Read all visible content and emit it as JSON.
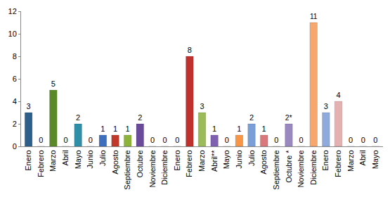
{
  "chart_data": {
    "type": "bar",
    "categories": [
      "Enero",
      "Febrero",
      "Marzo",
      "Abril",
      "Mayo",
      "Junio",
      "Julio",
      "Agosto",
      "Septiembre",
      "Octubre",
      "Noviembre",
      "Diciembre",
      "Enero",
      "Febrero",
      "Marzo",
      "Abril**",
      "Mayo",
      "Junio",
      "Julio",
      "Agosto",
      "Septiembre",
      "Octubre *",
      "Noviembre",
      "Diciembre",
      "Enero",
      "Febrero",
      "Marzo",
      "Abril",
      "Mayo"
    ],
    "values": [
      3,
      0,
      5,
      0,
      2,
      0,
      1,
      1,
      1,
      2,
      0,
      0,
      0,
      8,
      3,
      1,
      0,
      1,
      2,
      1,
      0,
      2,
      0,
      11,
      3,
      4,
      0,
      0,
      0
    ],
    "value_labels": [
      "3",
      "0",
      "5",
      "0",
      "2",
      "0",
      "1",
      "1",
      "1",
      "2",
      "0",
      "0",
      "0",
      "8",
      "3",
      "1",
      "0",
      "1",
      "2",
      "1",
      "0",
      "2*",
      "0",
      "11",
      "3",
      "4",
      "0",
      "0",
      "0"
    ],
    "colors": [
      "#2e5f8a",
      "#8b1f1f",
      "#5a8a28",
      "#5b3f8a",
      "#2f8fa8",
      "#e07b1a",
      "#3f6fbf",
      "#c0392b",
      "#8db33a",
      "#6a4a9a",
      "#3aa8c8",
      "#f08a24",
      "#6a8fcc",
      "#c0302c",
      "#9bbb59",
      "#7f5fb0",
      "#4bacc6",
      "#f79646",
      "#7a9fd8",
      "#d9777a",
      "#b8d08a",
      "#9a88c0",
      "#8ccfe0",
      "#f7a66e",
      "#8faadc",
      "#e5b0b0",
      "#c8dca8",
      "#c0b4d8",
      "#b0dce8"
    ],
    "ylim": [
      0,
      12
    ],
    "yticks": [
      0,
      2,
      4,
      6,
      8,
      10,
      12
    ],
    "grid": false,
    "data_labels": true
  }
}
